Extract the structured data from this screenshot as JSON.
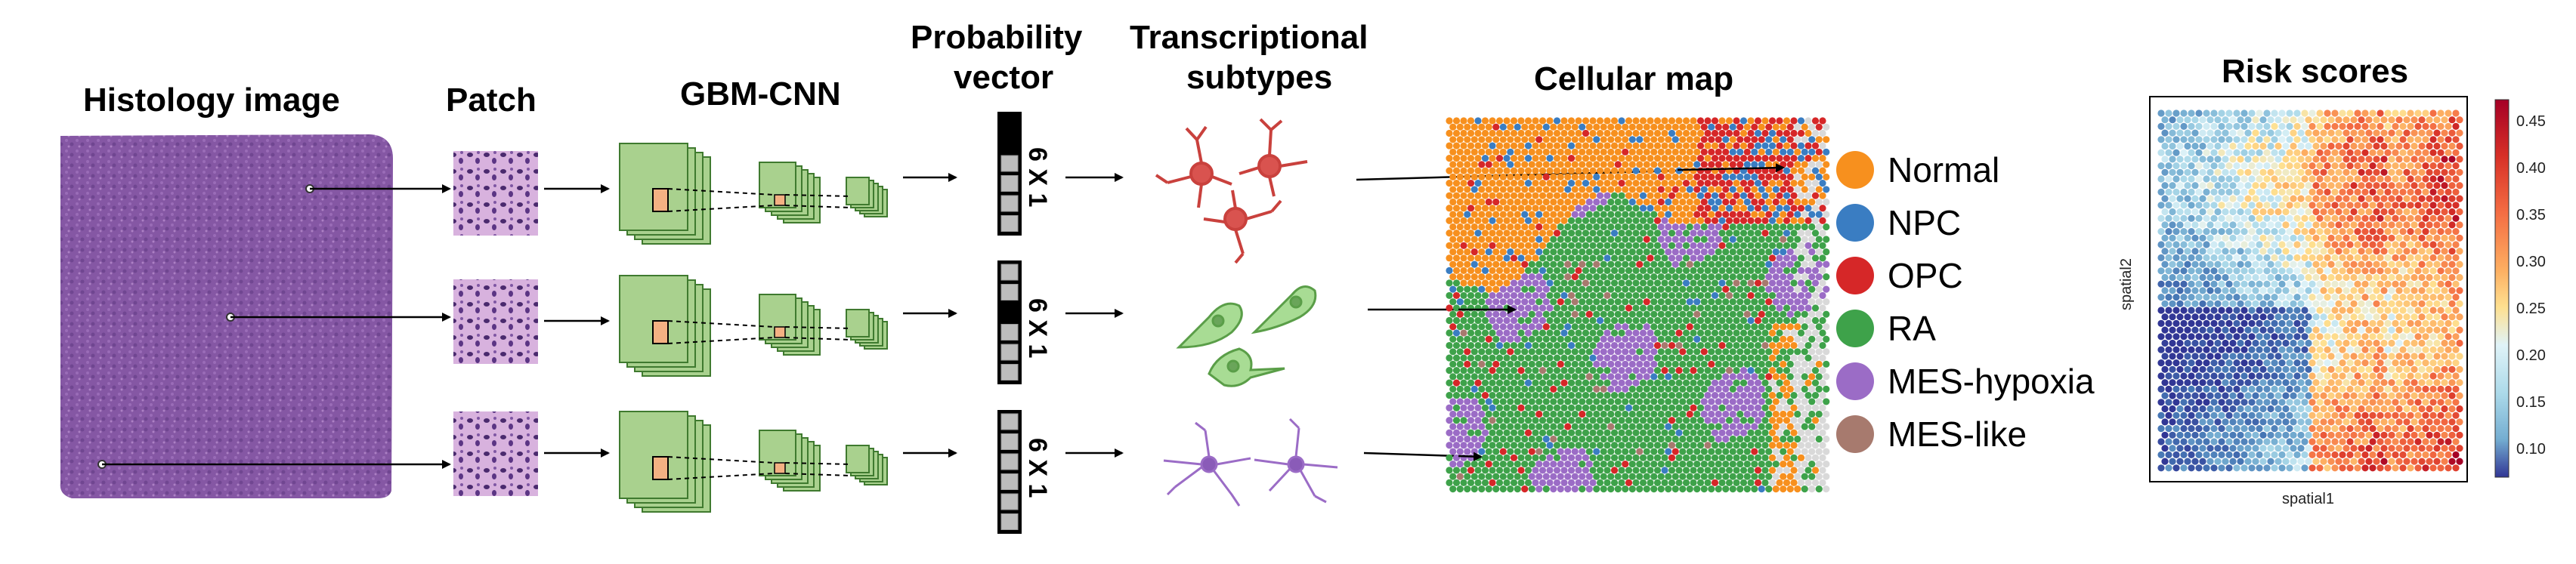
{
  "titles": {
    "histology": "Histology image",
    "patch": "Patch",
    "cnn": "GBM-CNN",
    "prob_line1": "Probability",
    "prob_line2": "vector",
    "trans_line1": "Transcriptional",
    "trans_line2": "subtypes",
    "cellmap": "Cellular map",
    "risk": "Risk scores"
  },
  "vector_label": "6 X 1",
  "legend": [
    {
      "label": "Normal",
      "color": "#f7901e"
    },
    {
      "label": "NPC",
      "color": "#3a7dc2"
    },
    {
      "label": "OPC",
      "color": "#d62728"
    },
    {
      "label": "RA",
      "color": "#3ea24a"
    },
    {
      "label": "MES-hypoxia",
      "color": "#9b6cc6"
    },
    {
      "label": "MES-like",
      "color": "#a77a6e"
    }
  ],
  "risk_plot": {
    "xlabel": "spatial1",
    "ylabel": "spatial2",
    "colorbar_ticks": [
      "0.45",
      "0.40",
      "0.35",
      "0.30",
      "0.25",
      "0.20",
      "0.15",
      "0.10"
    ]
  },
  "colors": {
    "cnn_fill": "#a9d18e",
    "cnn_stroke": "#3f7a2f",
    "patch_marker": "#f4b183",
    "neuron_red": "#d9534f",
    "neuron_green": "#8fcf7b",
    "neuron_purple": "#9b6cc6"
  }
}
